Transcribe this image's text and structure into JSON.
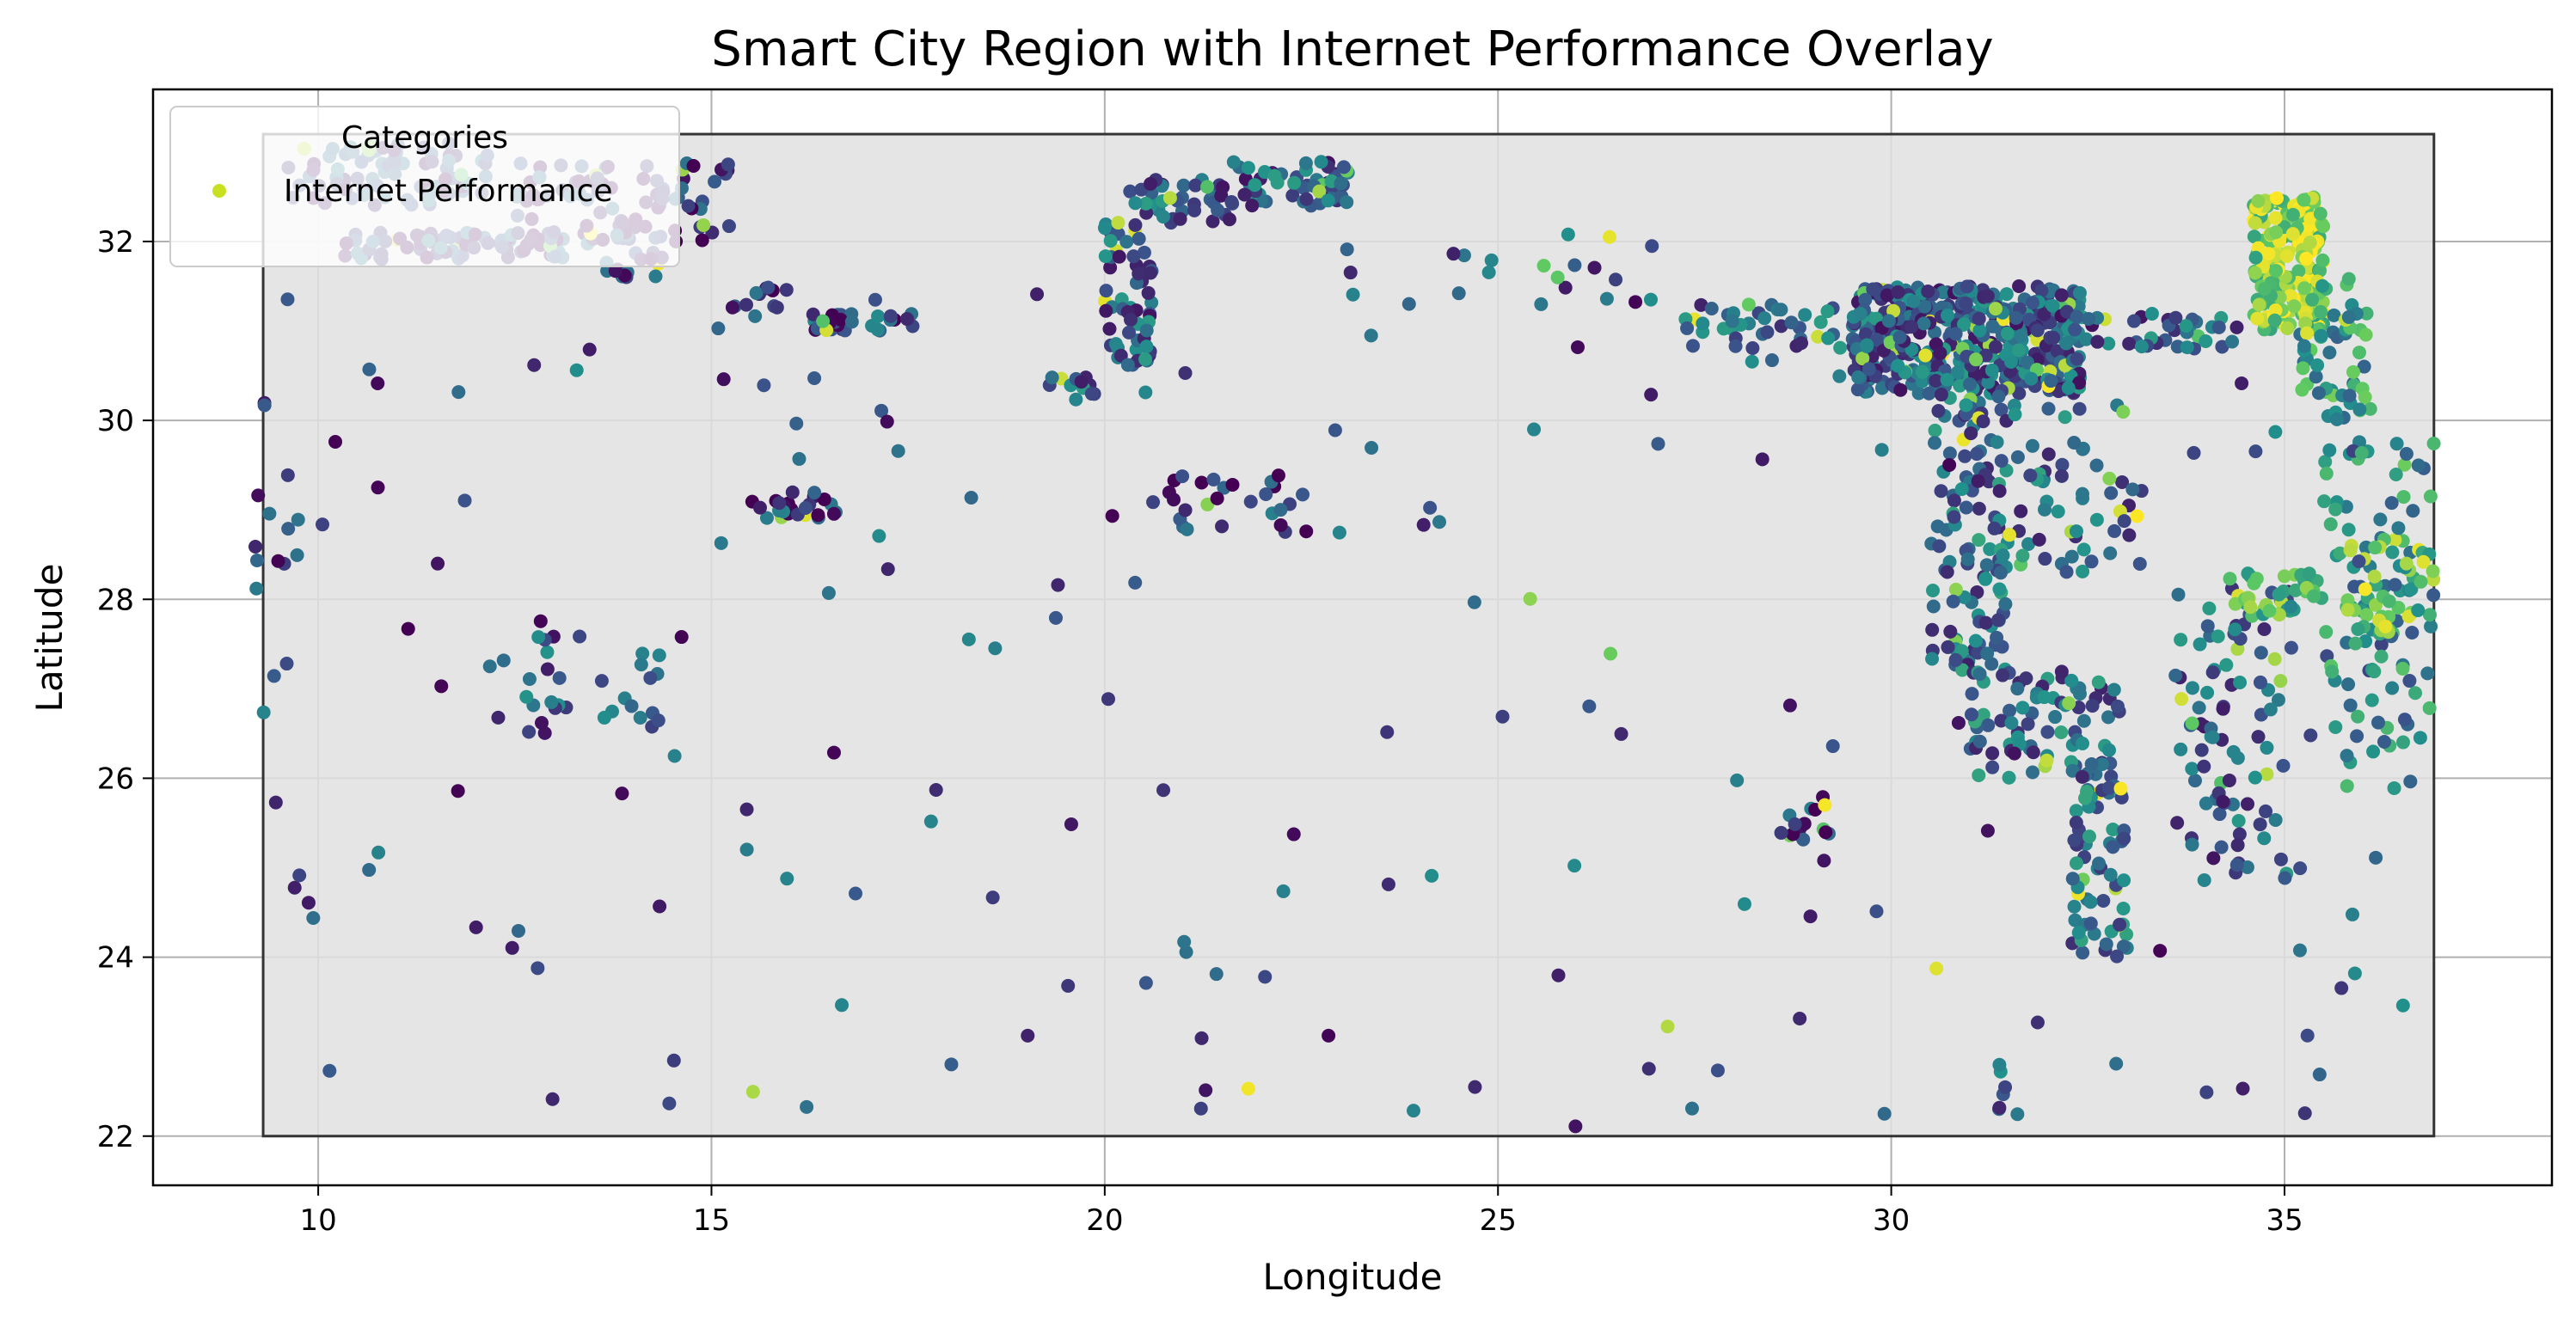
{
  "chart_data": {
    "type": "scatter",
    "title": "Smart City Region with Internet Performance Overlay",
    "xlabel": "Longitude",
    "ylabel": "Latitude",
    "xlim": [
      7.9,
      38.4
    ],
    "ylim": [
      21.45,
      33.7
    ],
    "xticks": [
      10,
      15,
      20,
      25,
      30,
      35
    ],
    "yticks": [
      22,
      24,
      26,
      28,
      30,
      32
    ],
    "grid": true,
    "region_rect": {
      "x0": 9.3,
      "x1": 36.9,
      "y0": 22.0,
      "y1": 33.2,
      "fill": "#e0e0e0",
      "edge": "#333333"
    },
    "legend": {
      "title": "Categories",
      "placement": "upper-left",
      "entries": [
        {
          "label": "Internet Performance",
          "color": "#c8e020"
        }
      ]
    },
    "colormap": [
      "#440154",
      "#3b528b",
      "#21918c",
      "#5ec962",
      "#fde725"
    ],
    "series": [
      {
        "name": "Internet Performance",
        "clusters": [
          {
            "x0": 9.6,
            "x1": 12.2,
            "y0": 32.4,
            "y1": 33.1,
            "n": 80,
            "c": 0.2
          },
          {
            "x0": 10.3,
            "x1": 13.5,
            "y0": 31.8,
            "y1": 32.1,
            "n": 80,
            "c": 0.2
          },
          {
            "x0": 12.5,
            "x1": 15.3,
            "y0": 32.0,
            "y1": 32.9,
            "n": 90,
            "c": 0.15
          },
          {
            "x0": 13.6,
            "x1": 14.4,
            "y0": 31.6,
            "y1": 31.9,
            "n": 15,
            "c": 0.2
          },
          {
            "x0": 15.2,
            "x1": 16.0,
            "y0": 31.1,
            "y1": 31.5,
            "n": 12,
            "c": 0.2
          },
          {
            "x0": 16.2,
            "x1": 17.6,
            "y0": 31.0,
            "y1": 31.2,
            "n": 30,
            "c": 0.25
          },
          {
            "x0": 15.5,
            "x1": 16.6,
            "y0": 28.9,
            "y1": 29.2,
            "n": 25,
            "c": 0.2
          },
          {
            "x0": 9.2,
            "x1": 9.8,
            "y0": 24.3,
            "y1": 30.2,
            "n": 18,
            "c": 0.25
          },
          {
            "x0": 12.0,
            "x1": 14.6,
            "y0": 26.5,
            "y1": 27.6,
            "n": 30,
            "c": 0.3
          },
          {
            "x0": 20.0,
            "x1": 20.6,
            "y0": 30.6,
            "y1": 32.3,
            "n": 60,
            "c": 0.3
          },
          {
            "x0": 20.3,
            "x1": 21.6,
            "y0": 32.2,
            "y1": 32.7,
            "n": 40,
            "c": 0.3
          },
          {
            "x0": 21.6,
            "x1": 23.1,
            "y0": 32.4,
            "y1": 32.9,
            "n": 60,
            "c": 0.3
          },
          {
            "x0": 19.2,
            "x1": 19.9,
            "y0": 30.2,
            "y1": 30.5,
            "n": 12,
            "c": 0.35
          },
          {
            "x0": 20.8,
            "x1": 22.6,
            "y0": 28.7,
            "y1": 29.4,
            "n": 25,
            "c": 0.2
          },
          {
            "x0": 29.5,
            "x1": 32.4,
            "y0": 30.3,
            "y1": 31.5,
            "n": 500,
            "c": 0.3
          },
          {
            "x0": 30.5,
            "x1": 31.5,
            "y0": 27.2,
            "y1": 30.3,
            "n": 120,
            "c": 0.35
          },
          {
            "x0": 31.0,
            "x1": 32.9,
            "y0": 26.0,
            "y1": 27.2,
            "n": 80,
            "c": 0.35
          },
          {
            "x0": 32.3,
            "x1": 33.0,
            "y0": 24.0,
            "y1": 26.2,
            "n": 70,
            "c": 0.35
          },
          {
            "x0": 31.3,
            "x1": 33.2,
            "y0": 28.3,
            "y1": 30.2,
            "n": 60,
            "c": 0.35
          },
          {
            "x0": 34.6,
            "x1": 35.5,
            "y0": 31.0,
            "y1": 32.5,
            "n": 200,
            "c": 0.8
          },
          {
            "x0": 35.2,
            "x1": 36.1,
            "y0": 30.0,
            "y1": 31.6,
            "n": 60,
            "c": 0.55
          },
          {
            "x0": 33.6,
            "x1": 35.1,
            "y0": 24.8,
            "y1": 28.2,
            "n": 90,
            "c": 0.3
          },
          {
            "x0": 34.3,
            "x1": 35.5,
            "y0": 27.8,
            "y1": 28.3,
            "n": 40,
            "c": 0.7
          },
          {
            "x0": 35.5,
            "x1": 36.9,
            "y0": 25.8,
            "y1": 29.8,
            "n": 100,
            "c": 0.45
          },
          {
            "x0": 35.8,
            "x1": 36.9,
            "y0": 27.6,
            "y1": 28.6,
            "n": 40,
            "c": 0.75
          },
          {
            "x0": 32.3,
            "x1": 34.4,
            "y0": 30.8,
            "y1": 31.2,
            "n": 40,
            "c": 0.3
          },
          {
            "x0": 27.2,
            "x1": 29.4,
            "y0": 30.8,
            "y1": 31.3,
            "n": 40,
            "c": 0.3
          },
          {
            "x0": 23.0,
            "x1": 27.0,
            "y0": 31.3,
            "y1": 32.1,
            "n": 20,
            "c": 0.25
          },
          {
            "x0": 28.7,
            "x1": 29.3,
            "y0": 25.3,
            "y1": 25.8,
            "n": 15,
            "c": 0.2
          },
          {
            "x0": 31.3,
            "x1": 31.6,
            "y0": 22.3,
            "y1": 22.8,
            "n": 6,
            "c": 0.3
          },
          {
            "x0": 9.5,
            "x1": 36.8,
            "y0": 22.1,
            "y1": 31.5,
            "n": 180,
            "c": 0.25
          }
        ]
      }
    ]
  }
}
